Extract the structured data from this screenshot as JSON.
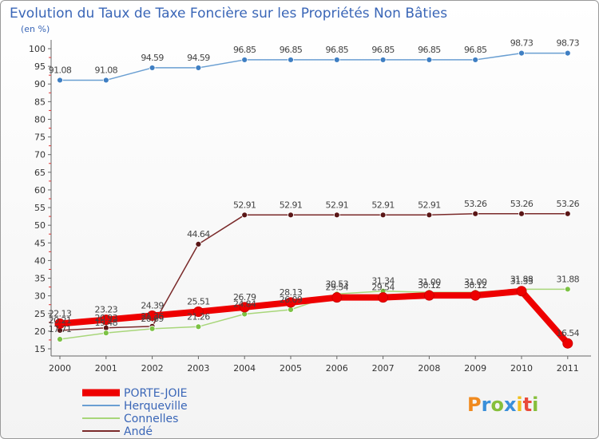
{
  "chart_data": {
    "type": "line",
    "title": "Evolution du Taux de Taxe Foncière sur les Propriétés Non Bâties",
    "subtitle": "(en %)",
    "xlabel": "",
    "ylabel": "",
    "x": [
      "2000",
      "2001",
      "2002",
      "2003",
      "2004",
      "2005",
      "2006",
      "2007",
      "2008",
      "2009",
      "2010",
      "2011"
    ],
    "ylim": [
      14,
      101
    ],
    "yticks": [
      15,
      20,
      25,
      30,
      35,
      40,
      45,
      50,
      55,
      60,
      65,
      70,
      75,
      80,
      85,
      90,
      95,
      100
    ],
    "grid": false,
    "series": [
      {
        "name": "Herqueville",
        "color": "#6a9fd2",
        "marker": "#3f7fc3",
        "values": [
          91.08,
          91.08,
          94.59,
          94.59,
          96.85,
          96.85,
          96.85,
          96.85,
          96.85,
          96.85,
          98.73,
          98.73
        ],
        "labels": [
          "91.08",
          "91.08",
          "94.59",
          "94.59",
          "96.85",
          "96.85",
          "96.85",
          "96.85",
          "96.85",
          "96.85",
          "98.73",
          "98.73"
        ]
      },
      {
        "name": "Andé",
        "color": "#7a2a2a",
        "marker": "#5a1616",
        "values": [
          20.21,
          20.93,
          21.36,
          44.64,
          52.91,
          52.91,
          52.91,
          52.91,
          52.91,
          53.26,
          53.26,
          53.26
        ],
        "labels": [
          "20.21",
          "20.93",
          "21.36",
          "44.64",
          "52.91",
          "52.91",
          "52.91",
          "52.91",
          "52.91",
          "53.26",
          "53.26",
          "53.26"
        ]
      },
      {
        "name": "Connelles",
        "color": "#a8d67a",
        "marker": "#7cc244",
        "values": [
          17.71,
          19.48,
          20.69,
          21.26,
          24.84,
          26.09,
          30.53,
          31.34,
          31.0,
          31.0,
          31.88,
          31.88
        ],
        "labels": [
          "17.71",
          "19.48",
          "20.69",
          "21.26",
          "24.84",
          "26.09",
          "30.53",
          "31.34",
          "31.00",
          "31.00",
          "31.88",
          "31.88"
        ]
      },
      {
        "name": "PORTE-JOIE",
        "color": "#ee0000",
        "marker": "#ee0000",
        "values": [
          22.13,
          23.23,
          24.39,
          25.51,
          26.79,
          28.13,
          29.54,
          29.54,
          30.12,
          30.12,
          31.33,
          16.54
        ],
        "labels": [
          "22.13",
          "23.23",
          "24.39",
          "25.51",
          "26.79",
          "28.13",
          "29.54",
          "29.54",
          "30.12",
          "30.12",
          "31.33",
          "16.54"
        ]
      }
    ],
    "legend": {
      "placement": "bottom-left",
      "entries": [
        "PORTE-JOIE",
        "Herqueville",
        "Connelles",
        "Andé"
      ]
    }
  },
  "logo": {
    "letters": [
      "P",
      "r",
      "o",
      "x",
      "i",
      "t",
      "i"
    ],
    "colors": [
      "#f08a1e",
      "#3a8fd9",
      "#86bf3b",
      "#3a8fd9",
      "#f0c01e",
      "#e94a3a",
      "#86bf3b"
    ]
  }
}
